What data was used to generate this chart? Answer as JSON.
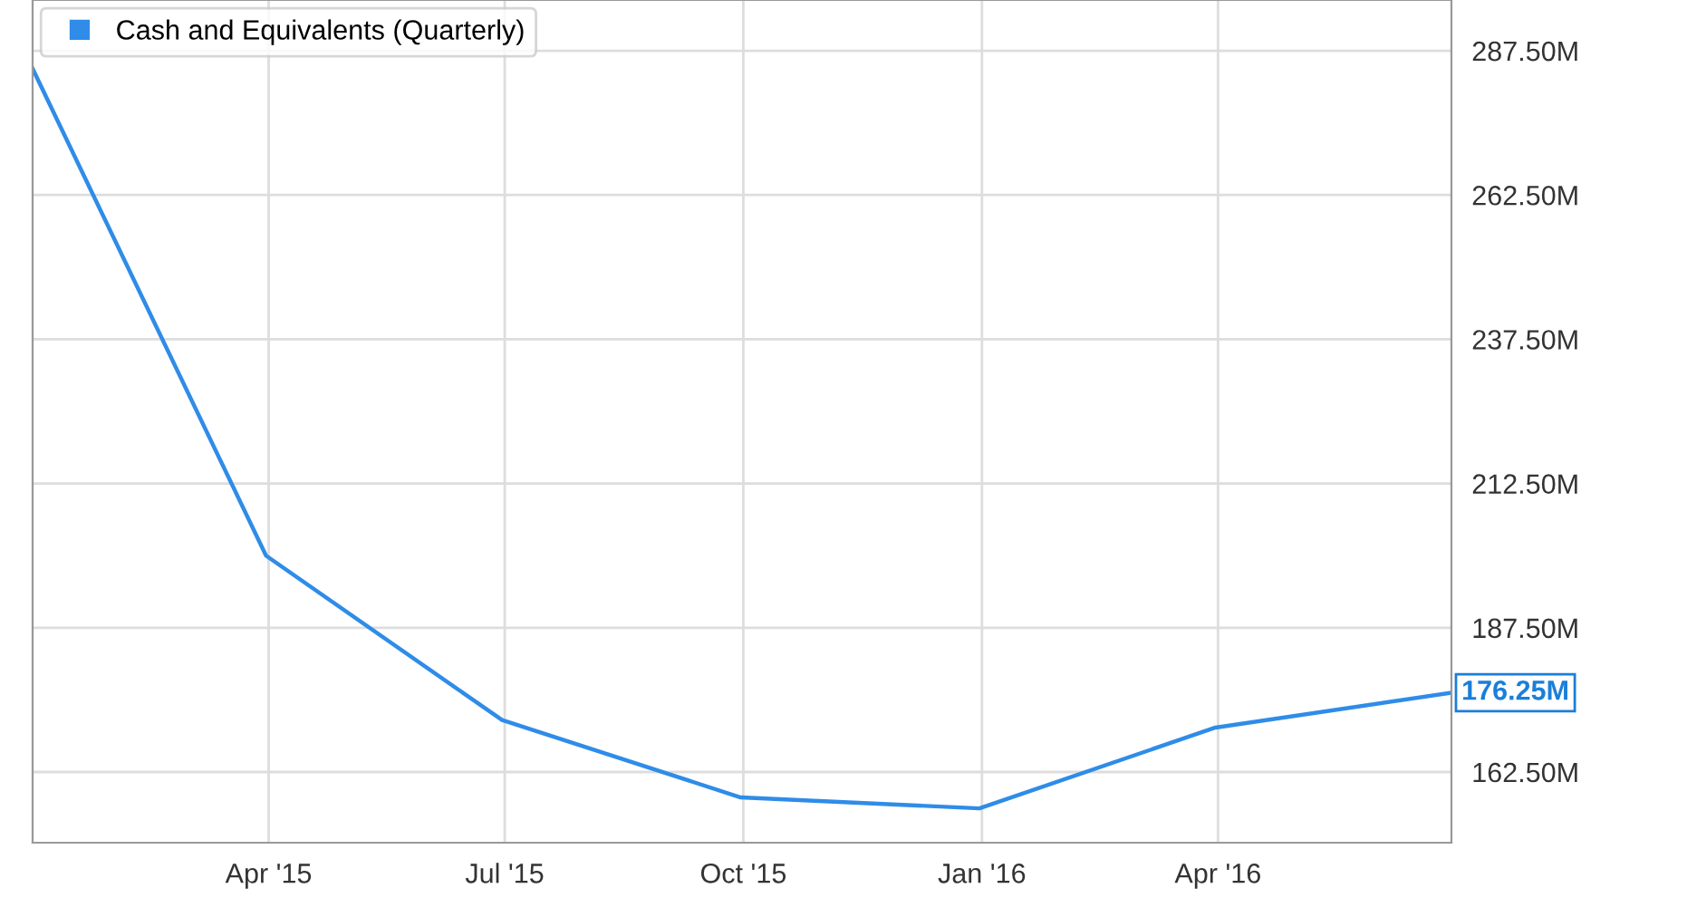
{
  "chart_data": {
    "type": "line",
    "x": [
      "2014-12-31",
      "2015-03-31",
      "2015-06-30",
      "2015-09-30",
      "2015-12-31",
      "2016-03-31",
      "2016-06-30"
    ],
    "series": [
      {
        "name": "Cash and Equivalents (Quarterly)",
        "color": "#2f8ce8",
        "values": [
          284.4,
          200.0,
          171.5,
          158.1,
          156.2,
          170.2,
          176.25
        ],
        "value_labels": [
          null,
          null,
          null,
          null,
          null,
          null,
          "176.25M"
        ]
      }
    ],
    "xlim": [
      "2014-12-31",
      "2016-06-30"
    ],
    "xticks": [
      {
        "value": "2015-04-01",
        "label": "Apr '15"
      },
      {
        "value": "2015-07-01",
        "label": "Jul '15"
      },
      {
        "value": "2015-10-01",
        "label": "Oct '15"
      },
      {
        "value": "2016-01-01",
        "label": "Jan '16"
      },
      {
        "value": "2016-04-01",
        "label": "Apr '16"
      }
    ],
    "ylim": [
      150.25,
      296.3
    ],
    "yticks": [
      {
        "value": 162.5,
        "label": "162.50M"
      },
      {
        "value": 187.5,
        "label": "187.50M"
      },
      {
        "value": 212.5,
        "label": "212.50M"
      },
      {
        "value": 237.5,
        "label": "237.50M"
      },
      {
        "value": 262.5,
        "label": "262.50M"
      },
      {
        "value": 287.5,
        "label": "287.50M"
      }
    ],
    "grid": true,
    "legend": "top left",
    "marker": "none",
    "line_style": "solid"
  }
}
